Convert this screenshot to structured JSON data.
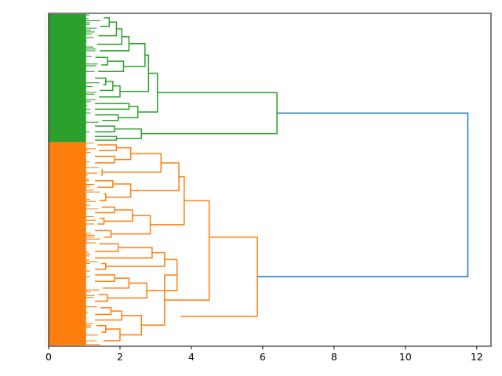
{
  "chart_data": {
    "type": "dendrogram",
    "orientation": "horizontal",
    "title": "",
    "xlabel": "",
    "ylabel": "",
    "xlim": [
      0,
      12.4
    ],
    "xticks": [
      0,
      2,
      4,
      6,
      8,
      10,
      12
    ],
    "xtick_labels": [
      "0",
      "2",
      "4",
      "6",
      "8",
      "10",
      "12"
    ],
    "leaf_count": 176,
    "leaf_labels_note": "leaf labels are too small to read in the screenshot",
    "colors": {
      "cluster_green": "#2ca02c",
      "cluster_orange": "#ff7f0e",
      "link_above_threshold": "#1f77b4",
      "axis": "#000000"
    },
    "clusters": [
      {
        "name": "green",
        "leaf_start": 0,
        "leaf_end": 67,
        "color": "#2ca02c"
      },
      {
        "name": "orange",
        "leaf_start": 68,
        "leaf_end": 175,
        "color": "#ff7f0e"
      }
    ],
    "merges": [
      {
        "id": "g1",
        "color": "green",
        "distance": 1.7,
        "children": [
          [
            0,
            3
          ],
          [
            4,
            8
          ]
        ]
      },
      {
        "id": "g2",
        "color": "green",
        "distance": 1.9,
        "children": [
          "g1",
          [
            9,
            13
          ]
        ]
      },
      {
        "id": "g3",
        "color": "green",
        "distance": 2.05,
        "children": [
          "g2",
          [
            14,
            17
          ]
        ]
      },
      {
        "id": "g4",
        "color": "green",
        "distance": 2.25,
        "children": [
          "g3",
          [
            18,
            20
          ]
        ]
      },
      {
        "id": "g5",
        "color": "green",
        "distance": 1.65,
        "children": [
          [
            21,
            24
          ],
          [
            25,
            28
          ]
        ]
      },
      {
        "id": "g6",
        "color": "green",
        "distance": 2.1,
        "children": [
          "g5",
          [
            29,
            31
          ]
        ]
      },
      {
        "id": "g7",
        "color": "green",
        "distance": 2.7,
        "children": [
          "g4",
          "g6"
        ]
      },
      {
        "id": "g8",
        "color": "green",
        "distance": 1.6,
        "children": [
          [
            32,
            35
          ],
          [
            36,
            38
          ]
        ]
      },
      {
        "id": "g9",
        "color": "green",
        "distance": 1.8,
        "children": [
          "g8",
          [
            39,
            41
          ]
        ]
      },
      {
        "id": "g10",
        "color": "green",
        "distance": 2.0,
        "children": [
          "g9",
          [
            42,
            45
          ]
        ]
      },
      {
        "id": "g11",
        "color": "green",
        "distance": 2.8,
        "children": [
          "g7",
          "g10"
        ]
      },
      {
        "id": "g12",
        "color": "green",
        "distance": 2.25,
        "children": [
          [
            46,
            48
          ],
          [
            49,
            51
          ]
        ]
      },
      {
        "id": "g13",
        "color": "green",
        "distance": 1.95,
        "children": [
          [
            52,
            54
          ],
          [
            55,
            57
          ]
        ]
      },
      {
        "id": "g14",
        "color": "green",
        "distance": 2.5,
        "children": [
          "g12",
          "g13"
        ]
      },
      {
        "id": "g15",
        "color": "green",
        "distance": 3.05,
        "children": [
          "g11",
          "g14"
        ]
      },
      {
        "id": "g16",
        "color": "green",
        "distance": 1.85,
        "children": [
          [
            58,
            60
          ],
          [
            61,
            63
          ]
        ]
      },
      {
        "id": "g17",
        "color": "green",
        "distance": 1.9,
        "children": [
          [
            64,
            65
          ],
          [
            66,
            67
          ]
        ]
      },
      {
        "id": "g18",
        "color": "green",
        "distance": 2.6,
        "children": [
          "g16",
          "g17"
        ]
      },
      {
        "id": "G",
        "color": "green",
        "distance": 6.4,
        "children": [
          "g15",
          "g18"
        ]
      },
      {
        "id": "o1",
        "color": "orange",
        "distance": 1.9,
        "children": [
          [
            68,
            70
          ],
          [
            71,
            73
          ]
        ]
      },
      {
        "id": "o2",
        "color": "orange",
        "distance": 1.85,
        "children": [
          [
            74,
            76
          ],
          [
            77,
            80
          ]
        ]
      },
      {
        "id": "o3",
        "color": "orange",
        "distance": 2.3,
        "children": [
          "o1",
          "o2"
        ]
      },
      {
        "id": "o4",
        "color": "orange",
        "distance": 1.5,
        "children": [
          [
            81,
            83
          ],
          [
            84,
            86
          ]
        ]
      },
      {
        "id": "o5",
        "color": "orange",
        "distance": 3.15,
        "children": [
          "o3",
          "o4"
        ]
      },
      {
        "id": "o6",
        "color": "orange",
        "distance": 1.8,
        "children": [
          [
            87,
            89
          ],
          [
            90,
            93
          ]
        ]
      },
      {
        "id": "o7",
        "color": "orange",
        "distance": 1.6,
        "children": [
          [
            94,
            96
          ],
          [
            97,
            100
          ]
        ]
      },
      {
        "id": "o8",
        "color": "orange",
        "distance": 2.3,
        "children": [
          "o6",
          "o7"
        ]
      },
      {
        "id": "o9",
        "color": "orange",
        "distance": 3.65,
        "children": [
          "o5",
          "o8"
        ]
      },
      {
        "id": "o10",
        "color": "orange",
        "distance": 1.85,
        "children": [
          [
            101,
            103
          ],
          [
            104,
            106
          ]
        ]
      },
      {
        "id": "o11",
        "color": "orange",
        "distance": 1.55,
        "children": [
          [
            107,
            109
          ],
          [
            110,
            112
          ]
        ]
      },
      {
        "id": "o12",
        "color": "orange",
        "distance": 2.35,
        "children": [
          "o10",
          "o11"
        ]
      },
      {
        "id": "o13",
        "color": "orange",
        "distance": 1.75,
        "children": [
          [
            113,
            116
          ],
          [
            117,
            119
          ]
        ]
      },
      {
        "id": "o14",
        "color": "orange",
        "distance": 2.85,
        "children": [
          "o12",
          "o13"
        ]
      },
      {
        "id": "o15",
        "color": "orange",
        "distance": 3.8,
        "children": [
          "o9",
          "o14"
        ]
      },
      {
        "id": "o16",
        "color": "orange",
        "distance": 1.95,
        "children": [
          [
            120,
            123
          ],
          [
            124,
            127
          ]
        ]
      },
      {
        "id": "o17",
        "color": "orange",
        "distance": 2.9,
        "children": [
          "o16",
          [
            128,
            130
          ]
        ]
      },
      {
        "id": "o18",
        "color": "orange",
        "distance": 1.6,
        "children": [
          [
            131,
            133
          ],
          [
            134,
            136
          ]
        ]
      },
      {
        "id": "o19",
        "color": "orange",
        "distance": 3.25,
        "children": [
          "o17",
          "o18"
        ]
      },
      {
        "id": "o20",
        "color": "orange",
        "distance": 1.85,
        "children": [
          [
            137,
            139
          ],
          [
            140,
            143
          ]
        ]
      },
      {
        "id": "o21",
        "color": "orange",
        "distance": 2.25,
        "children": [
          "o20",
          [
            144,
            146
          ]
        ]
      },
      {
        "id": "o22",
        "color": "orange",
        "distance": 1.65,
        "children": [
          [
            147,
            150
          ],
          [
            151,
            153
          ]
        ]
      },
      {
        "id": "o23",
        "color": "orange",
        "distance": 2.75,
        "children": [
          "o21",
          "o22"
        ]
      },
      {
        "id": "o24",
        "color": "orange",
        "distance": 3.6,
        "children": [
          "o19",
          "o23"
        ]
      },
      {
        "id": "o25",
        "color": "orange",
        "distance": 1.75,
        "children": [
          [
            154,
            157
          ],
          [
            158,
            160
          ]
        ]
      },
      {
        "id": "o26",
        "color": "orange",
        "distance": 2.05,
        "children": [
          "o25",
          [
            161,
            163
          ]
        ]
      },
      {
        "id": "o27",
        "color": "orange",
        "distance": 1.6,
        "children": [
          [
            164,
            166
          ],
          [
            167,
            170
          ]
        ]
      },
      {
        "id": "o28",
        "color": "orange",
        "distance": 2.0,
        "children": [
          "o27",
          [
            171,
            175
          ]
        ]
      },
      {
        "id": "o29",
        "color": "orange",
        "distance": 2.6,
        "children": [
          "o26",
          "o28"
        ]
      },
      {
        "id": "o30",
        "color": "orange",
        "distance": 3.25,
        "children": [
          "o24",
          "o29"
        ]
      },
      {
        "id": "o31",
        "color": "orange",
        "distance": 4.5,
        "children": [
          "o15",
          "o30"
        ]
      },
      {
        "id": "O",
        "color": "orange",
        "distance": 5.85,
        "children": [
          "o31",
          "o30b"
        ],
        "note": "top orange merge"
      },
      {
        "id": "root",
        "color": "blue",
        "distance": 11.75,
        "children": [
          "G",
          "O"
        ]
      }
    ]
  }
}
